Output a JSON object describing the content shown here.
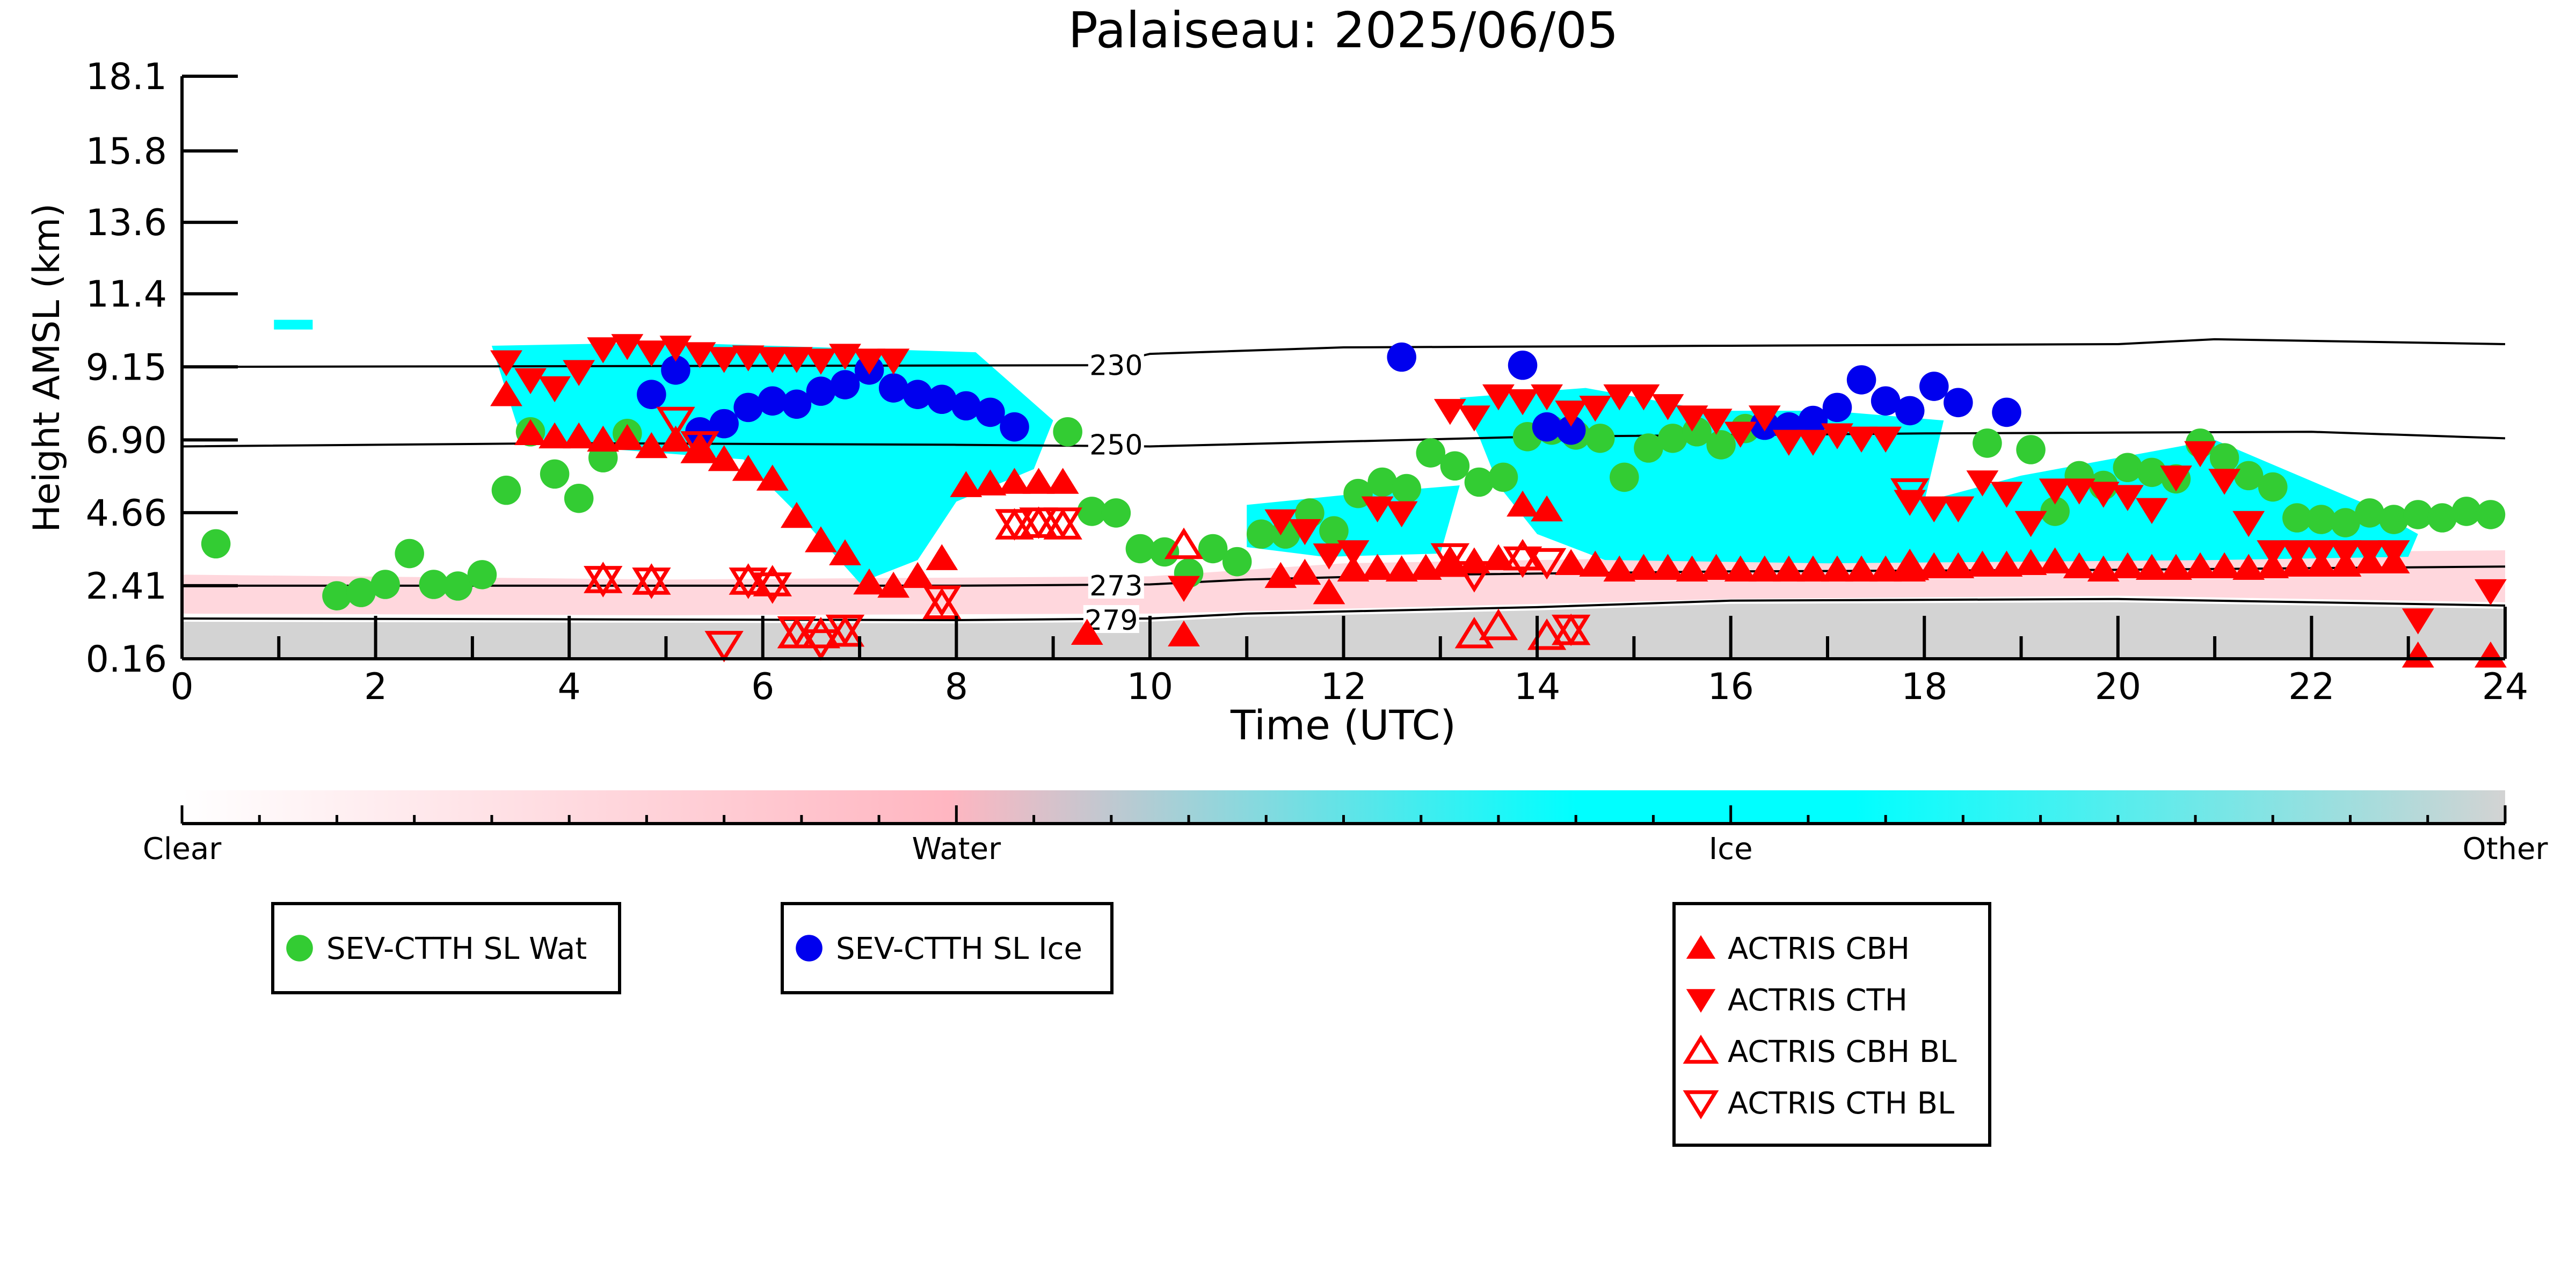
{
  "chart_data": {
    "type": "scatter",
    "title": "Palaiseau: 2025/06/05",
    "xlabel": "Time (UTC)",
    "ylabel": "Height AMSL (km)",
    "xlim": [
      0,
      24
    ],
    "ylim": [
      0.16,
      18.1
    ],
    "x_ticks": [
      "0",
      "2",
      "4",
      "6",
      "8",
      "10",
      "12",
      "14",
      "16",
      "18",
      "20",
      "22",
      "24"
    ],
    "y_ticks": [
      "0.16",
      "2.41",
      "4.66",
      "6.90",
      "9.15",
      "11.4",
      "13.6",
      "15.8",
      "18.1"
    ],
    "colorbar": {
      "labels": [
        "Clear",
        "Water",
        "Ice",
        "Other"
      ],
      "colors": {
        "Clear": "#ffffff",
        "Water": "#ffb6c1",
        "Ice": "#00ffff",
        "Other": "#d3d3d3"
      }
    },
    "isotherms": [
      {
        "label": "230",
        "x": [
          0,
          9.5,
          10,
          12,
          16,
          20,
          21,
          24
        ],
        "y": [
          9.15,
          9.2,
          9.55,
          9.75,
          9.8,
          9.85,
          10.0,
          9.85
        ]
      },
      {
        "label": "250",
        "x": [
          0,
          4,
          8,
          10,
          14,
          18,
          22,
          24
        ],
        "y": [
          6.7,
          6.8,
          6.75,
          6.7,
          7.0,
          7.1,
          7.15,
          6.95
        ]
      },
      {
        "label": "273",
        "x": [
          0,
          8,
          10,
          11,
          13,
          16,
          20,
          24
        ],
        "y": [
          2.41,
          2.41,
          2.45,
          2.6,
          2.75,
          2.85,
          2.9,
          3.0
        ]
      },
      {
        "label": "279",
        "x": [
          0,
          8,
          10,
          11,
          14,
          16,
          20,
          24
        ],
        "y": [
          1.4,
          1.35,
          1.4,
          1.55,
          1.75,
          1.95,
          2.0,
          1.8
        ]
      }
    ],
    "series": [
      {
        "name": "SEV-CTTH SL Wat",
        "marker": "circle",
        "color": "#33cc33",
        "x": [
          0.35,
          1.6,
          1.85,
          2.1,
          2.35,
          2.6,
          2.85,
          3.1,
          3.35,
          3.6,
          3.85,
          4.1,
          4.35,
          4.6,
          9.15,
          9.4,
          9.65,
          9.9,
          10.15,
          10.4,
          10.65,
          10.9,
          11.15,
          11.4,
          11.65,
          11.9,
          12.15,
          12.4,
          12.65,
          12.9,
          13.15,
          13.4,
          13.65,
          13.9,
          14.15,
          14.4,
          14.65,
          14.9,
          15.15,
          15.4,
          15.65,
          15.9,
          16.15,
          18.65,
          19.1,
          19.35,
          19.6,
          19.85,
          20.1,
          20.35,
          20.6,
          20.85,
          21.1,
          21.35,
          21.6,
          21.85,
          22.1,
          22.35,
          22.6,
          22.85,
          23.1,
          23.35,
          23.6,
          23.85
        ],
        "y": [
          3.7,
          2.1,
          2.2,
          2.45,
          3.4,
          2.45,
          2.4,
          2.75,
          5.35,
          7.15,
          5.85,
          5.1,
          6.35,
          7.1,
          7.15,
          4.7,
          4.65,
          3.55,
          3.45,
          2.8,
          3.55,
          3.15,
          4.0,
          4.0,
          4.65,
          4.1,
          5.25,
          5.6,
          5.4,
          6.5,
          6.1,
          5.6,
          5.75,
          7.0,
          7.2,
          7.05,
          6.95,
          5.75,
          6.65,
          6.95,
          7.15,
          6.75,
          7.25,
          6.8,
          6.6,
          4.7,
          5.8,
          5.5,
          6.05,
          5.9,
          5.7,
          6.8,
          6.35,
          5.8,
          5.45,
          4.5,
          4.45,
          4.35,
          4.65,
          4.45,
          4.6,
          4.5,
          4.7,
          4.6
        ]
      },
      {
        "name": "SEV-CTTH SL Ice",
        "marker": "circle",
        "color": "#0000ee",
        "x": [
          4.85,
          5.1,
          5.35,
          5.6,
          5.85,
          6.1,
          6.35,
          6.6,
          6.85,
          7.1,
          7.35,
          7.6,
          7.85,
          8.1,
          8.35,
          8.6,
          12.6,
          13.85,
          14.1,
          14.35,
          16.35,
          16.6,
          16.85,
          17.1,
          17.35,
          17.6,
          17.85,
          18.1,
          18.35,
          18.85
        ],
        "y": [
          8.3,
          9.05,
          7.15,
          7.4,
          7.9,
          8.1,
          8.0,
          8.4,
          8.6,
          9.05,
          8.5,
          8.3,
          8.15,
          7.95,
          7.75,
          7.3,
          9.45,
          9.2,
          7.3,
          7.2,
          7.35,
          7.3,
          7.5,
          7.9,
          8.75,
          8.1,
          7.8,
          8.55,
          8.05,
          7.75
        ]
      },
      {
        "name": "ACTRIS CBH",
        "marker": "triangle-up",
        "filled": true,
        "color": "#ff0000",
        "x": [
          3.35,
          3.6,
          3.85,
          4.1,
          4.35,
          4.6,
          4.85,
          5.1,
          5.35,
          5.6,
          5.85,
          6.1,
          6.35,
          6.6,
          6.85,
          7.1,
          7.35,
          7.6,
          7.85,
          8.1,
          8.35,
          8.6,
          8.85,
          9.1,
          9.35,
          10.35,
          11.35,
          11.6,
          11.85,
          12.1,
          12.35,
          12.6,
          12.85,
          13.1,
          13.35,
          13.6,
          13.85,
          14.1,
          14.35,
          14.6,
          14.85,
          15.1,
          15.35,
          15.6,
          15.85,
          16.1,
          16.35,
          16.6,
          16.85,
          17.1,
          17.35,
          17.6,
          17.85,
          18.1,
          18.35,
          18.6,
          18.85,
          19.1,
          19.35,
          19.6,
          19.85,
          20.1,
          20.35,
          20.6,
          20.85,
          21.1,
          21.35,
          21.6,
          21.85,
          22.1,
          22.35,
          22.6,
          22.85,
          23.1,
          23.85
        ],
        "y": [
          8.3,
          7.1,
          7.0,
          7.0,
          6.9,
          6.95,
          6.7,
          6.9,
          6.6,
          6.3,
          6.0,
          5.7,
          4.55,
          3.8,
          3.4,
          2.5,
          2.4,
          2.7,
          3.25,
          5.5,
          5.55,
          5.6,
          5.6,
          5.6,
          0.95,
          0.9,
          2.7,
          2.8,
          2.2,
          2.9,
          2.95,
          2.9,
          2.95,
          3.1,
          3.15,
          3.25,
          4.9,
          4.75,
          3.1,
          3.05,
          2.9,
          2.95,
          2.95,
          2.9,
          2.95,
          2.9,
          2.9,
          2.9,
          2.9,
          2.9,
          2.9,
          2.9,
          2.9,
          3.0,
          3.0,
          3.05,
          3.05,
          3.1,
          3.15,
          3.0,
          2.9,
          3.0,
          2.95,
          2.95,
          3.0,
          3.0,
          2.95,
          3.0,
          3.05,
          3.05,
          3.05,
          3.15,
          3.15,
          0.25,
          0.25
        ]
      },
      {
        "name": "ACTRIS CTH",
        "marker": "triangle-down",
        "filled": true,
        "color": "#ff0000",
        "x": [
          3.35,
          3.6,
          3.85,
          4.1,
          4.35,
          4.6,
          4.85,
          5.1,
          5.35,
          5.6,
          5.85,
          6.1,
          6.35,
          6.6,
          6.85,
          7.1,
          7.35,
          10.35,
          11.35,
          11.6,
          11.85,
          12.1,
          12.35,
          12.6,
          13.1,
          13.35,
          13.6,
          13.85,
          14.1,
          14.35,
          14.6,
          14.85,
          15.1,
          15.35,
          15.6,
          15.85,
          16.1,
          16.35,
          16.6,
          16.85,
          17.1,
          17.35,
          17.6,
          17.85,
          18.1,
          18.35,
          18.6,
          18.85,
          19.1,
          19.35,
          19.6,
          19.85,
          20.1,
          20.35,
          20.6,
          20.85,
          21.1,
          21.35,
          21.6,
          21.85,
          22.1,
          22.35,
          22.6,
          22.85,
          23.1,
          23.85
        ],
        "y": [
          9.3,
          8.75,
          8.5,
          9.0,
          9.7,
          9.8,
          9.6,
          9.75,
          9.55,
          9.4,
          9.45,
          9.4,
          9.4,
          9.35,
          9.5,
          9.35,
          9.35,
          2.35,
          4.4,
          4.1,
          3.35,
          3.45,
          4.8,
          4.65,
          7.8,
          7.6,
          8.25,
          8.1,
          8.25,
          7.75,
          7.9,
          8.25,
          8.25,
          7.95,
          7.6,
          7.5,
          7.1,
          7.6,
          6.85,
          6.85,
          7.05,
          6.95,
          6.95,
          5.0,
          4.8,
          4.8,
          5.6,
          5.25,
          4.35,
          5.35,
          5.35,
          5.25,
          5.15,
          4.75,
          5.75,
          6.5,
          5.65,
          4.35,
          3.45,
          3.45,
          3.45,
          3.45,
          3.45,
          3.45,
          1.35,
          2.25
        ]
      },
      {
        "name": "ACTRIS CBH BL",
        "marker": "triangle-up",
        "filled": false,
        "color": "#ff0000",
        "x": [
          4.35,
          4.85,
          5.35,
          5.85,
          6.1,
          6.35,
          6.6,
          6.85,
          7.85,
          8.6,
          8.85,
          9.1,
          10.35,
          13.1,
          13.35,
          13.6,
          13.85,
          14.1,
          14.35,
          17.85
        ],
        "y": [
          2.6,
          2.55,
          6.6,
          2.55,
          2.5,
          0.9,
          0.9,
          0.95,
          1.8,
          4.25,
          4.3,
          4.25,
          3.65,
          3.1,
          0.9,
          1.15,
          3.3,
          0.85,
          1.0,
          3.0
        ]
      },
      {
        "name": "ACTRIS CTH BL",
        "marker": "triangle-down",
        "filled": false,
        "color": "#ff0000",
        "x": [
          4.35,
          4.85,
          5.1,
          5.35,
          5.6,
          5.85,
          6.1,
          6.35,
          6.6,
          6.85,
          7.85,
          8.6,
          8.85,
          9.1,
          13.1,
          13.35,
          13.85,
          14.1,
          14.35,
          17.85
        ],
        "y": [
          2.6,
          2.55,
          7.5,
          6.75,
          0.6,
          2.55,
          2.4,
          1.05,
          0.65,
          1.1,
          2.0,
          4.35,
          4.4,
          4.4,
          3.3,
          2.75,
          3.2,
          3.15,
          1.1,
          5.3
        ]
      }
    ],
    "legends": [
      [
        "SEV-CTTH SL Wat"
      ],
      [
        "SEV-CTTH SL Ice"
      ],
      [
        "ACTRIS CBH",
        "ACTRIS CTH",
        "ACTRIS CBH BL",
        "ACTRIS CTH BL"
      ]
    ]
  }
}
